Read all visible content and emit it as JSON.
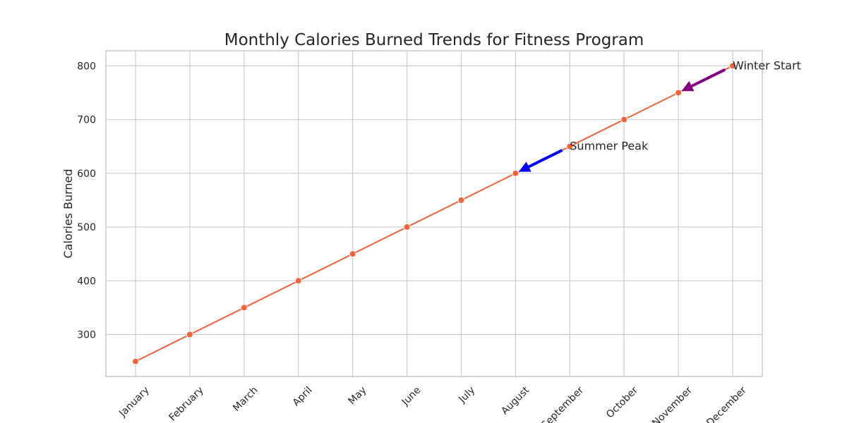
{
  "chart_data": {
    "type": "line",
    "title": "Monthly Calories Burned Trends for Fitness Program",
    "xlabel": "",
    "ylabel": "Calories Burned",
    "categories": [
      "January",
      "February",
      "March",
      "April",
      "May",
      "June",
      "July",
      "August",
      "September",
      "October",
      "November",
      "December"
    ],
    "series": [
      {
        "values": [
          250,
          300,
          350,
          400,
          450,
          500,
          550,
          600,
          650,
          700,
          750,
          800
        ],
        "color": "#f4623a"
      }
    ],
    "ylim": [
      222,
      828
    ],
    "yticks": [
      300,
      400,
      500,
      600,
      700,
      800
    ],
    "grid": true,
    "legend": "none",
    "annotations": [
      {
        "text": "Summer Peak",
        "text_at": [
          "September",
          650
        ],
        "arrow_to": [
          "August",
          600
        ],
        "color": "#0000ff"
      },
      {
        "text": "Winter Start",
        "text_at": [
          "December",
          800
        ],
        "arrow_to": [
          "November",
          750
        ],
        "color": "#800080"
      }
    ]
  }
}
